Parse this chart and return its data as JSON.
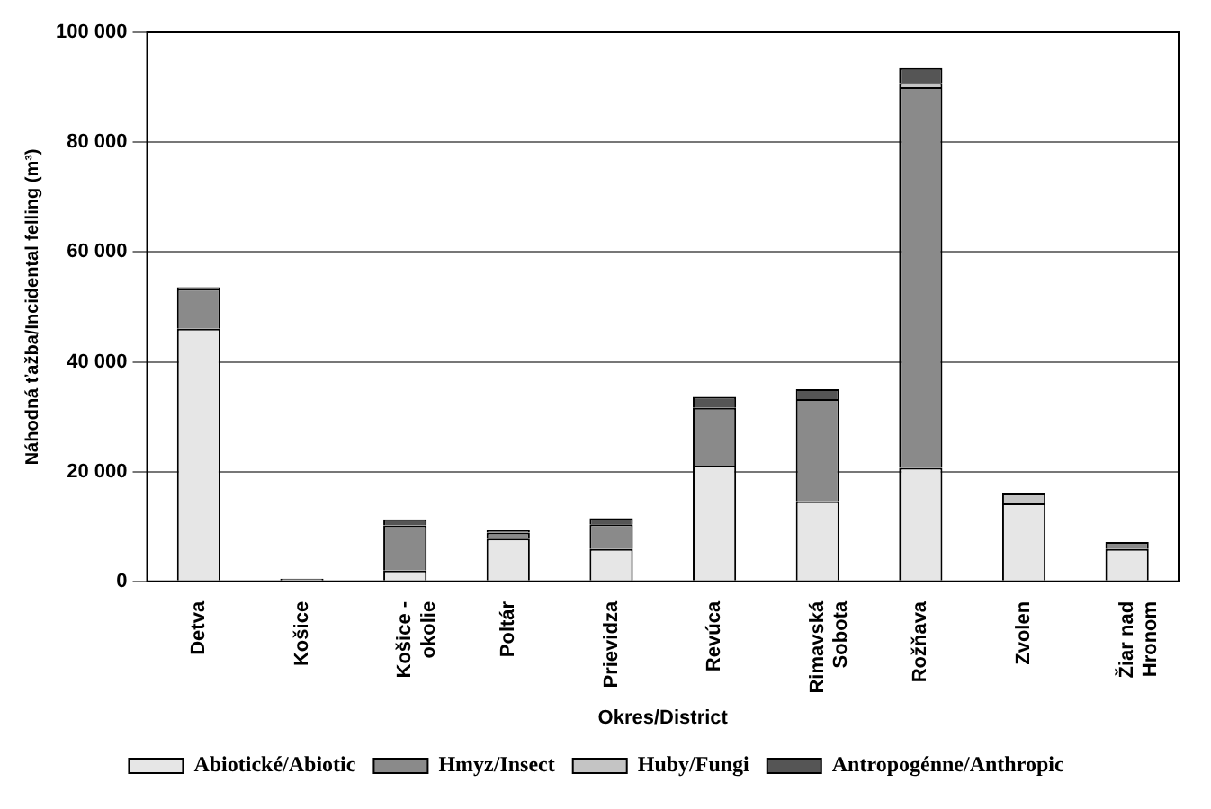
{
  "chart_data": {
    "type": "bar",
    "stacked": true,
    "xlabel": "Okres/District",
    "ylabel": "Náhodná ťažba/Incidental felling (m³)",
    "categories": [
      "Detva",
      "Košice",
      "Košice - okolie",
      "Poltár",
      "Prievidza",
      "Revúca",
      "Rimavská Sobota",
      "Rožňava",
      "Zvolen",
      "Žiar nad Hronom"
    ],
    "series": [
      {
        "name": "Abiotické/Abiotic",
        "color": "#e6e6e6",
        "values": [
          46000,
          500,
          2000,
          7800,
          5900,
          21100,
          14600,
          20700,
          14200,
          5900
        ]
      },
      {
        "name": "Hmyz/Insect",
        "color": "#8a8a8a",
        "values": [
          7300,
          0,
          8200,
          1100,
          4500,
          10500,
          18600,
          69300,
          0,
          1300
        ]
      },
      {
        "name": "Huby/Fungi",
        "color": "#c4c4c4",
        "values": [
          0,
          0,
          0,
          0,
          0,
          0,
          0,
          800,
          1800,
          0
        ]
      },
      {
        "name": "Antropogénne/Anthropic",
        "color": "#555555",
        "values": [
          300,
          0,
          1100,
          400,
          1100,
          2000,
          1800,
          2700,
          0,
          0
        ]
      }
    ],
    "ylim": [
      0,
      100000
    ],
    "yticks": [
      {
        "value": 0,
        "label": "0"
      },
      {
        "value": 20000,
        "label": "20 000"
      },
      {
        "value": 40000,
        "label": "40 000"
      },
      {
        "value": 60000,
        "label": "60 000"
      },
      {
        "value": 80000,
        "label": "80 000"
      },
      {
        "value": 100000,
        "label": "100 000"
      }
    ],
    "grid": "y",
    "legend": "bottom"
  }
}
